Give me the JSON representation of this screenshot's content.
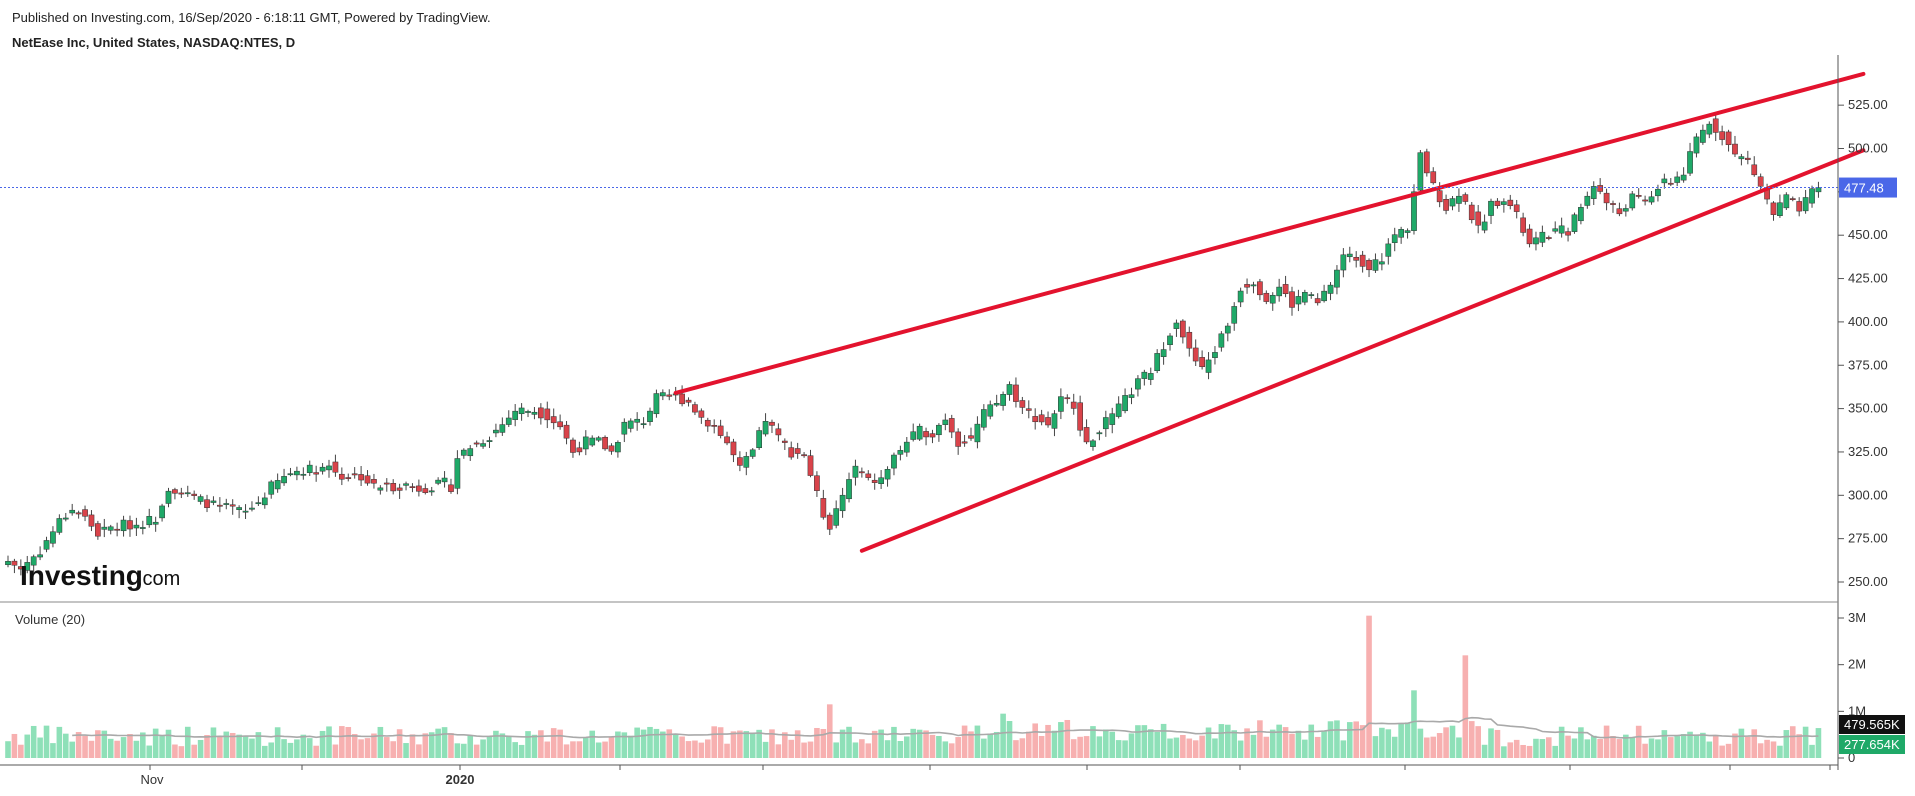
{
  "header": {
    "published": "Published on Investing.com, 16/Sep/2020 - 6:18:11 GMT, Powered by TradingView.",
    "instrument": "NetEase Inc, United States, NASDAQ:NTES, D"
  },
  "logo": {
    "brand": "Investing",
    "suffix": ".com"
  },
  "colors": {
    "up": "#1fa968",
    "down": "#d9434a",
    "up_vol": "#8ee0b8",
    "down_vol": "#f7b0b0",
    "trend": "#e3132e",
    "last_price": "#4a67e8",
    "vol_ma": "#a9a9a9",
    "grid": "#d8d8d8"
  },
  "chart_data": [
    {
      "type": "candlestick",
      "title": "NetEase Inc, United States, NASDAQ:NTES, D",
      "x_labels": [
        "Nov",
        "2020"
      ],
      "ylim": [
        235,
        545
      ],
      "y_ticks": [
        250,
        275,
        300,
        325,
        350,
        375,
        400,
        425,
        450,
        475,
        500,
        525
      ],
      "y_tick_labels": [
        "250.00",
        "275.00",
        "300.00",
        "325.00",
        "350.00",
        "375.00",
        "400.00",
        "425.00",
        "450.00",
        "475.00",
        "500.00",
        "525.00"
      ],
      "last_price": 477.48,
      "last_price_label": "477.48",
      "anchor_closes": [
        [
          0,
          262
        ],
        [
          2,
          258
        ],
        [
          5,
          268
        ],
        [
          8,
          285
        ],
        [
          10,
          292
        ],
        [
          12,
          287
        ],
        [
          14,
          278
        ],
        [
          16,
          281
        ],
        [
          18,
          283
        ],
        [
          20,
          283
        ],
        [
          23,
          287
        ],
        [
          25,
          305
        ],
        [
          28,
          300
        ],
        [
          30,
          297
        ],
        [
          33,
          293
        ],
        [
          35,
          292
        ],
        [
          37,
          290
        ],
        [
          39,
          296
        ],
        [
          41,
          305
        ],
        [
          44,
          313
        ],
        [
          46,
          315
        ],
        [
          48,
          315
        ],
        [
          50,
          317
        ],
        [
          52,
          311
        ],
        [
          55,
          311
        ],
        [
          57,
          305
        ],
        [
          60,
          305
        ],
        [
          62,
          306
        ],
        [
          64,
          304
        ],
        [
          66,
          305
        ],
        [
          68,
          307
        ],
        [
          69,
          305
        ],
        [
          70,
          322
        ],
        [
          72,
          328
        ],
        [
          75,
          334
        ],
        [
          77,
          341
        ],
        [
          79,
          349
        ],
        [
          82,
          349
        ],
        [
          84,
          346
        ],
        [
          86,
          340
        ],
        [
          88,
          325
        ],
        [
          90,
          331
        ],
        [
          92,
          331
        ],
        [
          94,
          325
        ],
        [
          96,
          341
        ],
        [
          99,
          343
        ],
        [
          101,
          356
        ],
        [
          104,
          357
        ],
        [
          106,
          354
        ],
        [
          108,
          345
        ],
        [
          110,
          340
        ],
        [
          112,
          330
        ],
        [
          114,
          315
        ],
        [
          116,
          325
        ],
        [
          118,
          344
        ],
        [
          120,
          333
        ],
        [
          122,
          325
        ],
        [
          124,
          324
        ],
        [
          126,
          300
        ],
        [
          127,
          289
        ],
        [
          128,
          283
        ],
        [
          130,
          300
        ],
        [
          132,
          316
        ],
        [
          134,
          308
        ],
        [
          136,
          309
        ],
        [
          138,
          322
        ],
        [
          140,
          331
        ],
        [
          142,
          337
        ],
        [
          144,
          336
        ],
        [
          146,
          345
        ],
        [
          148,
          331
        ],
        [
          150,
          333
        ],
        [
          152,
          347
        ],
        [
          154,
          353
        ],
        [
          156,
          363
        ],
        [
          158,
          350
        ],
        [
          160,
          345
        ],
        [
          162,
          341
        ],
        [
          164,
          355
        ],
        [
          166,
          353
        ],
        [
          168,
          328
        ],
        [
          170,
          339
        ],
        [
          172,
          345
        ],
        [
          174,
          355
        ],
        [
          176,
          365
        ],
        [
          178,
          372
        ],
        [
          180,
          387
        ],
        [
          182,
          402
        ],
        [
          184,
          383
        ],
        [
          186,
          372
        ],
        [
          188,
          384
        ],
        [
          190,
          399
        ],
        [
          192,
          420
        ],
        [
          194,
          424
        ],
        [
          196,
          413
        ],
        [
          198,
          420
        ],
        [
          200,
          410
        ],
        [
          202,
          417
        ],
        [
          204,
          410
        ],
        [
          206,
          422
        ],
        [
          208,
          438
        ],
        [
          210,
          437
        ],
        [
          212,
          432
        ],
        [
          214,
          437
        ],
        [
          216,
          450
        ],
        [
          218,
          455
        ],
        [
          220,
          496
        ],
        [
          222,
          478
        ],
        [
          224,
          466
        ],
        [
          226,
          475
        ],
        [
          227,
          469
        ],
        [
          229,
          453
        ],
        [
          231,
          468
        ],
        [
          233,
          472
        ],
        [
          235,
          461
        ],
        [
          237,
          444
        ],
        [
          239,
          449
        ],
        [
          241,
          452
        ],
        [
          243,
          453
        ],
        [
          245,
          466
        ],
        [
          247,
          480
        ],
        [
          249,
          469
        ],
        [
          251,
          463
        ],
        [
          253,
          472
        ],
        [
          255,
          469
        ],
        [
          257,
          478
        ],
        [
          259,
          481
        ],
        [
          261,
          486
        ],
        [
          263,
          505
        ],
        [
          265,
          515
        ],
        [
          267,
          508
        ],
        [
          269,
          496
        ],
        [
          271,
          493
        ],
        [
          273,
          478
        ],
        [
          275,
          462
        ],
        [
          277,
          472
        ],
        [
          279,
          464
        ],
        [
          281,
          474
        ],
        [
          282,
          477.48
        ]
      ],
      "volume": {
        "label": "Volume (20)",
        "ylim": [
          0,
          3400000
        ],
        "y_ticks": [
          0,
          1000000,
          2000000,
          3000000
        ],
        "y_tick_labels": [
          "0",
          "1M",
          "2M",
          "3M"
        ],
        "ma_label": "479.565K",
        "vol_label": "277.654K",
        "spikes": [
          [
            128,
            1150000
          ],
          [
            155,
            950000
          ],
          [
            212,
            3050000
          ],
          [
            219,
            1450000
          ],
          [
            227,
            2200000
          ]
        ]
      },
      "trendlines": [
        {
          "name": "upper",
          "start": [
            104,
            359
          ],
          "end": [
            289,
            543
          ]
        },
        {
          "name": "lower",
          "start": [
            133,
            268
          ],
          "end": [
            289,
            499
          ]
        }
      ]
    }
  ]
}
